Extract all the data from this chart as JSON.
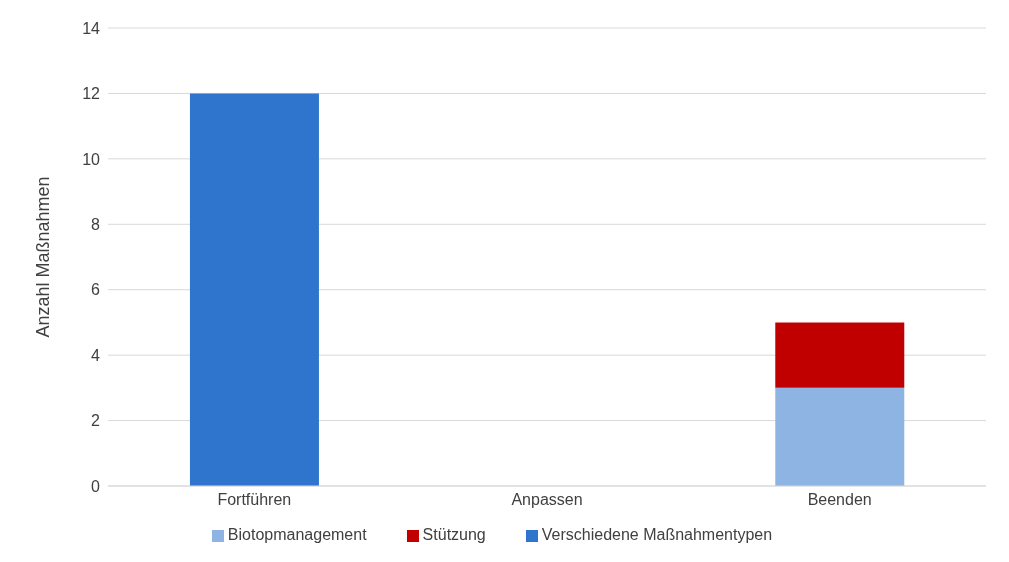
{
  "chart_data": {
    "type": "bar",
    "stacked": true,
    "ylabel": "Anzahl Maßnahmen",
    "categories": [
      "Fortführen",
      "Anpassen",
      "Beenden"
    ],
    "series": [
      {
        "name": "Verschiedene Maßnahmentypen",
        "color": "#2f75cd",
        "values": [
          12,
          null,
          null
        ]
      },
      {
        "name": "Biotopmanagement",
        "color": "#8db4e2",
        "values": [
          null,
          null,
          3
        ]
      },
      {
        "name": "Stützung",
        "color": "#c00000",
        "values": [
          null,
          null,
          2
        ]
      }
    ],
    "ylim": [
      0,
      14
    ],
    "yticks": [
      0,
      2,
      4,
      6,
      8,
      10,
      12,
      14
    ],
    "grid": "y",
    "legend": "bottom"
  }
}
